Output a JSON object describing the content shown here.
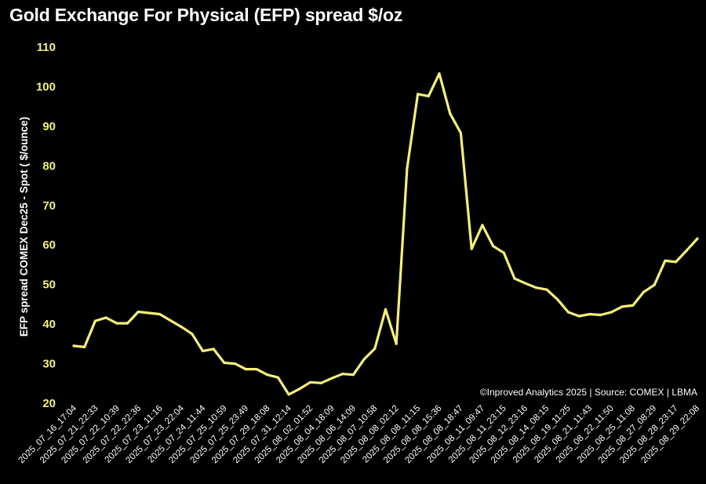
{
  "chart_data": {
    "type": "line",
    "title": "Gold Exchange For Physical (EFP) spread $/oz",
    "ylabel": "EFP spread  COMEX Dec25 - Spot ( $/ounce)",
    "xlabel": "",
    "ylim": [
      20,
      110
    ],
    "yticks": [
      20,
      30,
      40,
      50,
      60,
      70,
      80,
      90,
      100,
      110
    ],
    "grid": false,
    "source": "©Inproved Analytics 2025 | Source: COMEX | LBMA",
    "colors": {
      "background": "#000000",
      "line": "#f5ef7a",
      "ytick": "#f5ef7a",
      "text": "#ffffff"
    },
    "xtick_labels": [
      "2025_07_16_17:04",
      "2025_07_21_22:33",
      "2025_07_22_10:39",
      "2025_07_22_22:36",
      "2025_07_23_11:16",
      "2025_07_23_22:04",
      "2025_07_24_11:44",
      "2025_07_25_10:59",
      "2025_07_25_23:49",
      "2025_07_29_18:08",
      "2025_07_31_12:14",
      "2025_08_02_01:52",
      "2025_08_04_18:09",
      "2025_08_06_14:09",
      "2025_08_07_10:58",
      "2025_08_08_02:12",
      "2025_08_08_11:15",
      "2025_08_08_15:36",
      "2025_08_08_18:47",
      "2025_08_11_09:47",
      "2025_08_11_23:15",
      "2025_08_12_23:16",
      "2025_08_14_08:15",
      "2025_08_19_11:25",
      "2025_08_21_11:43",
      "2025_08_22_11:50",
      "2025_08_25_11:08",
      "2025_08_27_08:29",
      "2025_08_28_23:17",
      "2025_08_29_22:08"
    ],
    "series": [
      {
        "values": [
          34.5,
          34.2,
          40.8,
          41.6,
          40.2,
          40.2,
          43.1,
          42.8,
          42.5,
          40.9,
          39.3,
          37.5,
          33.2,
          33.7,
          30.2,
          30.0,
          28.6,
          28.6,
          27.2,
          26.5,
          22.2,
          23.6,
          25.3,
          25.1,
          26.3,
          27.4,
          27.2,
          31.1,
          33.8,
          43.7,
          35.0,
          79.3,
          98.1,
          97.6,
          103.3,
          93.2,
          88.3,
          59.0,
          65.0,
          59.7,
          58.0,
          51.5,
          50.3,
          49.2,
          48.7,
          46.2,
          43.0,
          42.0,
          42.5,
          42.3,
          43.0,
          44.4,
          44.7,
          48.1,
          49.9,
          56.0,
          55.7,
          58.6,
          61.6
        ]
      }
    ]
  }
}
